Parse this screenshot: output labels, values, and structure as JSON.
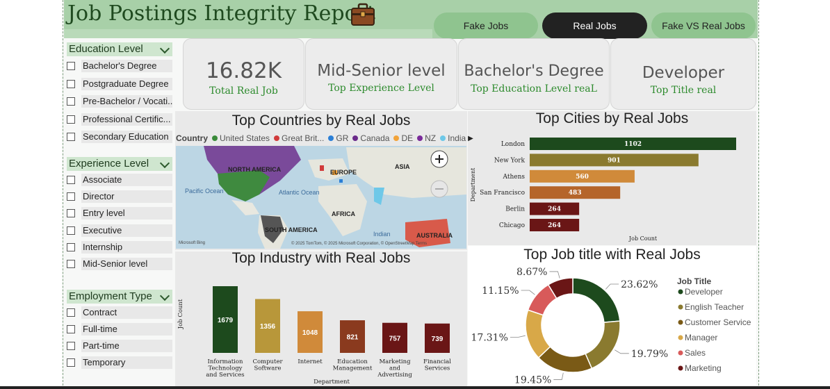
{
  "header": {
    "title": "Job Postings Integrity Report",
    "nav": [
      {
        "label": "Fake Jobs",
        "active": false
      },
      {
        "label": "Real Jobs",
        "active": true
      },
      {
        "label": "Fake VS Real Jobs",
        "active": false
      }
    ]
  },
  "slicers": {
    "education": {
      "title": "Education Level",
      "items": [
        "Bachelor's Degree",
        "Postgraduate Degree",
        "Pre-Bachelor / Vocati...",
        "Professional Certific...",
        "Secondary Education"
      ]
    },
    "experience": {
      "title": "Experience Level",
      "items": [
        "Associate",
        "Director",
        "Entry level",
        "Executive",
        "Internship",
        "Mid-Senior level"
      ]
    },
    "employment": {
      "title": "Employment Type",
      "items": [
        "Contract",
        "Full-time",
        "Part-time",
        "Temporary"
      ]
    }
  },
  "kpis": [
    {
      "value": "16.82K",
      "label": "Total Real Job"
    },
    {
      "value": "Mid-Senior level",
      "label": "Top Experience Level"
    },
    {
      "value": "Bachelor's Degree",
      "label": "Top Education Level reaL"
    },
    {
      "value": "Developer",
      "label": "Top Title real"
    }
  ],
  "map": {
    "title": "Top Countries by Real Jobs",
    "legend_label": "Country",
    "legend": [
      {
        "name": "United States",
        "color": "#3a8a3a"
      },
      {
        "name": "Great Brit...",
        "color": "#d13b3b"
      },
      {
        "name": "GR",
        "color": "#2b7fd6"
      },
      {
        "name": "Canada",
        "color": "#6a2a8a"
      },
      {
        "name": "DE",
        "color": "#f2a33a"
      },
      {
        "name": "NZ",
        "color": "#7a2a9a"
      },
      {
        "name": "India",
        "color": "#6ec8e8"
      }
    ],
    "labels": {
      "north_america": "NORTH AMERICA",
      "europe": "EUROPE",
      "asia": "ASIA",
      "africa": "AFRICA",
      "south_america": "SOUTH AMERICA",
      "australia": "AUSTRALIA",
      "pacific": "Pacific Ocean",
      "atlantic": "Atlantic Ocean",
      "indian": "Indian",
      "bing": "Microsoft Bing",
      "copyright": "© 2025 TomTom, © 2025 Microsoft Corporation, © OpenStreetMap Terms"
    }
  },
  "chart_data": [
    {
      "type": "bar",
      "orientation": "horizontal",
      "title": "Top Cities by Real Jobs",
      "categories": [
        "London",
        "New York",
        "Athens",
        "San Francisco",
        "Berlin",
        "Chicago"
      ],
      "values": [
        1102,
        901,
        560,
        483,
        264,
        264
      ],
      "colors": [
        "#1d4a1d",
        "#8a7a2f",
        "#d08a3a",
        "#b5652a",
        "#6a1616",
        "#6a1616"
      ],
      "xlabel": "Job Count",
      "ylabel": "Department",
      "xlim": [
        0,
        1102
      ]
    },
    {
      "type": "bar",
      "title": "Top Industry with Real Jobs",
      "categories": [
        "Information Technology and Services",
        "Computer Software",
        "Internet",
        "Education Management",
        "Marketing and Advertising",
        "Financial Services"
      ],
      "category_lines": [
        [
          "Information",
          "Technology",
          "and Services"
        ],
        [
          "Computer",
          "Software"
        ],
        [
          "Internet"
        ],
        [
          "Education",
          "Management"
        ],
        [
          "Marketing",
          "and",
          "Advertising"
        ],
        [
          "Financial",
          "Services"
        ]
      ],
      "values": [
        1679,
        1356,
        1048,
        821,
        757,
        739
      ],
      "colors": [
        "#1d4a1d",
        "#b8973a",
        "#d08a3a",
        "#8a3a1e",
        "#6a1616",
        "#6a1616"
      ],
      "xlabel": "Department",
      "ylabel": "Job Count",
      "ylim": [
        0,
        1679
      ]
    },
    {
      "type": "pie",
      "donut": true,
      "title": "Top Job title with Real Jobs",
      "legend_title": "Job Title",
      "categories": [
        "Developer",
        "English Teacher",
        "Customer Service",
        "Manager",
        "Sales",
        "Marketing"
      ],
      "values": [
        23.62,
        19.79,
        19.45,
        17.31,
        11.15,
        8.67
      ],
      "labels": [
        "23.62%",
        "19.79%",
        "19.45%",
        "17.31%",
        "11.15%",
        "8.67%"
      ],
      "colors": [
        "#1d4a1d",
        "#8a7a2f",
        "#7a5a16",
        "#d8a848",
        "#d85a5a",
        "#6a1616"
      ]
    }
  ]
}
